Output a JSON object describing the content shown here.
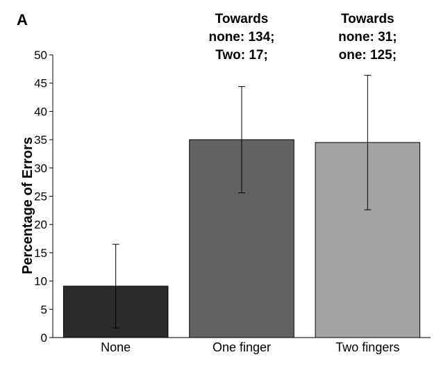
{
  "panel_label": "A",
  "chart_data": {
    "type": "bar",
    "categories": [
      "None",
      "One finger",
      "Two fingers"
    ],
    "values": [
      9.1,
      35.0,
      34.5
    ],
    "error_low": [
      1.7,
      25.6,
      22.6
    ],
    "error_high": [
      16.5,
      44.4,
      46.4
    ],
    "ylabel": "Percentage of Errors",
    "xlabel": "",
    "ylim": [
      0,
      50
    ],
    "yticks": [
      0,
      5,
      10,
      15,
      20,
      25,
      30,
      35,
      40,
      45,
      50
    ],
    "bar_colors": [
      "#2b2b2b",
      "#626262",
      "#a4a4a4"
    ],
    "annotations": [
      null,
      [
        "Towards",
        "none: 134;",
        "Two: 17;"
      ],
      [
        "Towards",
        "none: 31;",
        "one: 125;"
      ]
    ],
    "grid": false
  }
}
